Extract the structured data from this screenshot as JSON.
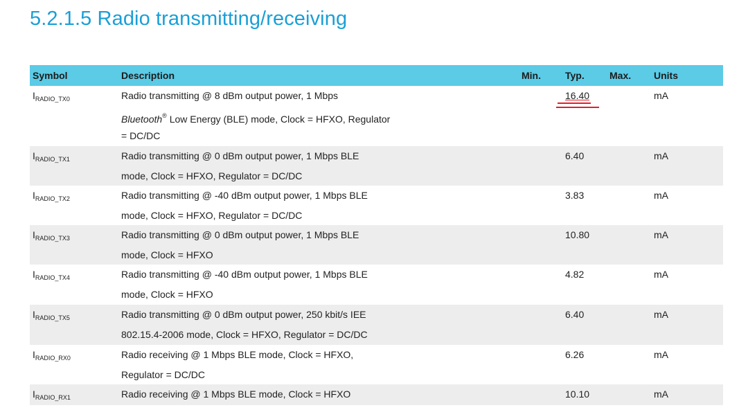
{
  "section_title": "5.2.1.5 Radio transmitting/receiving",
  "headers": {
    "symbol": "Symbol",
    "description": "Description",
    "min": "Min.",
    "typ": "Typ.",
    "max": "Max.",
    "units": "Units"
  },
  "rows": [
    {
      "symbol_main": "I",
      "symbol_sub": "RADIO_TX0",
      "desc": [
        "Radio transmitting @ 8 dBm output power, 1 Mbps",
        "Low Energy (BLE) mode, Clock = HFXO, Regulator",
        "= DC/DC"
      ],
      "desc_italic": "Bluetooth",
      "desc_sup": "®",
      "typ": "16.40",
      "units": "mA"
    },
    {
      "symbol_main": "I",
      "symbol_sub": "RADIO_TX1",
      "desc": [
        "Radio transmitting @ 0 dBm output power, 1 Mbps BLE",
        "mode, Clock = HFXO, Regulator = DC/DC"
      ],
      "typ": "6.40",
      "units": "mA"
    },
    {
      "symbol_main": "I",
      "symbol_sub": "RADIO_TX2",
      "desc": [
        "Radio transmitting @ -40 dBm output power, 1 Mbps BLE",
        "mode, Clock = HFXO, Regulator = DC/DC"
      ],
      "typ": "3.83",
      "units": "mA"
    },
    {
      "symbol_main": "I",
      "symbol_sub": "RADIO_TX3",
      "desc": [
        "Radio transmitting @ 0 dBm output power, 1 Mbps BLE",
        "mode, Clock = HFXO"
      ],
      "typ": "10.80",
      "units": "mA"
    },
    {
      "symbol_main": "I",
      "symbol_sub": "RADIO_TX4",
      "desc": [
        "Radio transmitting @ -40 dBm output power, 1 Mbps BLE",
        "mode, Clock = HFXO"
      ],
      "typ": "4.82",
      "units": "mA"
    },
    {
      "symbol_main": "I",
      "symbol_sub": "RADIO_TX5",
      "desc": [
        "Radio transmitting @ 0 dBm output power, 250 kbit/s IEE",
        "802.15.4-2006 mode, Clock = HFXO, Regulator = DC/DC"
      ],
      "typ": "6.40",
      "units": "mA"
    },
    {
      "symbol_main": "I",
      "symbol_sub": "RADIO_RX0",
      "desc": [
        "Radio receiving @ 1 Mbps BLE mode, Clock = HFXO,",
        "Regulator = DC/DC"
      ],
      "typ": "6.26",
      "units": "mA"
    },
    {
      "symbol_main": "I",
      "symbol_sub": "RADIO_RX1",
      "desc": [
        "Radio receiving @ 1 Mbps BLE mode, Clock = HFXO"
      ],
      "typ": "10.10",
      "units": "mA"
    }
  ],
  "annotation": {
    "color": "#e0202a",
    "target": "16.40"
  }
}
